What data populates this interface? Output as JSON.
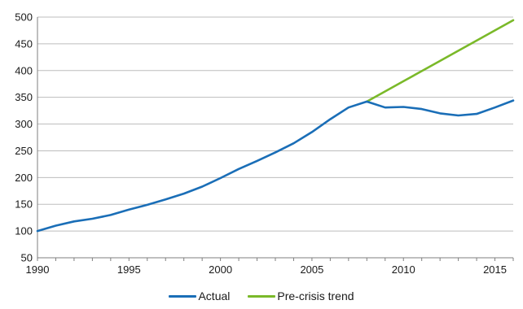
{
  "chart_data": {
    "type": "line",
    "title": "",
    "xlabel": "",
    "ylabel": "",
    "xlim": [
      1990,
      2016
    ],
    "ylim": [
      50,
      500
    ],
    "x_ticks": [
      1990,
      1995,
      2000,
      2005,
      2010,
      2015
    ],
    "y_ticks": [
      50,
      100,
      150,
      200,
      250,
      300,
      350,
      400,
      450,
      500
    ],
    "grid": "horizontal",
    "legend_position": "bottom",
    "series": [
      {
        "name": "Actual",
        "color": "#1a6eb7",
        "x": [
          1990,
          1991,
          1992,
          1993,
          1994,
          1995,
          1996,
          1997,
          1998,
          1999,
          2000,
          2001,
          2002,
          2003,
          2004,
          2005,
          2006,
          2007,
          2008,
          2009,
          2010,
          2011,
          2012,
          2013,
          2014,
          2015,
          2016
        ],
        "values": [
          100,
          110,
          118,
          123,
          130,
          140,
          149,
          159,
          170,
          183,
          199,
          216,
          231,
          247,
          264,
          285,
          309,
          331,
          342,
          331,
          332,
          328,
          320,
          316,
          319,
          331,
          344
        ]
      },
      {
        "name": "Pre-crisis trend",
        "color": "#7ab929",
        "x": [
          2008,
          2009,
          2010,
          2011,
          2012,
          2013,
          2014,
          2015,
          2016
        ],
        "values": [
          342,
          361,
          380,
          399,
          418,
          437,
          456,
          475,
          494
        ]
      }
    ]
  }
}
